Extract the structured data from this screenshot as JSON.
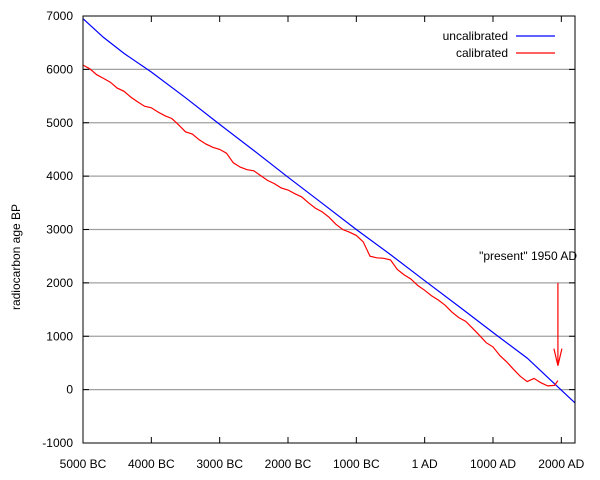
{
  "chart_data": {
    "type": "line",
    "title": "",
    "xlabel": "",
    "ylabel": "radiocarbon age BP",
    "xlim": [
      -5000,
      2200
    ],
    "ylim": [
      -1000,
      7000
    ],
    "grid": "horizontal",
    "legend_position": "top-right",
    "x_ticks": [
      {
        "value": -5000,
        "label": "5000 BC"
      },
      {
        "value": -4000,
        "label": "4000 BC"
      },
      {
        "value": -3000,
        "label": "3000 BC"
      },
      {
        "value": -2000,
        "label": "2000 BC"
      },
      {
        "value": -1000,
        "label": "1000 BC"
      },
      {
        "value": 0,
        "label": "1 AD"
      },
      {
        "value": 1000,
        "label": "1000 AD"
      },
      {
        "value": 2000,
        "label": "2000 AD"
      }
    ],
    "y_ticks": [
      {
        "value": -1000,
        "label": "-1000"
      },
      {
        "value": 0,
        "label": "0"
      },
      {
        "value": 1000,
        "label": "1000"
      },
      {
        "value": 2000,
        "label": "2000"
      },
      {
        "value": 3000,
        "label": "3000"
      },
      {
        "value": 4000,
        "label": "4000"
      },
      {
        "value": 5000,
        "label": "5000"
      },
      {
        "value": 6000,
        "label": "6000"
      },
      {
        "value": 7000,
        "label": "7000"
      }
    ],
    "series": [
      {
        "name": "uncalibrated",
        "color": "#0000ff",
        "x": [
          -5000,
          -4700,
          -4400,
          -4000,
          -3500,
          -3000,
          -2500,
          -2000,
          -1500,
          -1000,
          -500,
          0,
          500,
          1000,
          1500,
          2200
        ],
        "y": [
          6950,
          6600,
          6300,
          5950,
          5470,
          4970,
          4480,
          3980,
          3490,
          3000,
          2530,
          2040,
          1560,
          1070,
          590,
          -250
        ]
      },
      {
        "name": "calibrated",
        "color": "#ff0000",
        "x": [
          -5000,
          -4900,
          -4800,
          -4700,
          -4600,
          -4500,
          -4400,
          -4300,
          -4200,
          -4100,
          -4000,
          -3900,
          -3800,
          -3700,
          -3600,
          -3500,
          -3400,
          -3300,
          -3200,
          -3100,
          -3000,
          -2900,
          -2800,
          -2700,
          -2600,
          -2500,
          -2400,
          -2300,
          -2200,
          -2100,
          -2000,
          -1900,
          -1800,
          -1700,
          -1600,
          -1500,
          -1400,
          -1300,
          -1200,
          -1100,
          -1000,
          -900,
          -800,
          -700,
          -600,
          -500,
          -400,
          -300,
          -200,
          -100,
          0,
          100,
          200,
          300,
          400,
          500,
          600,
          700,
          800,
          900,
          1000,
          1100,
          1200,
          1300,
          1400,
          1500,
          1600,
          1700,
          1800,
          1900,
          1950
        ],
        "y": [
          6080,
          6010,
          5900,
          5830,
          5760,
          5650,
          5590,
          5480,
          5390,
          5310,
          5280,
          5200,
          5130,
          5080,
          4960,
          4830,
          4790,
          4680,
          4600,
          4540,
          4500,
          4430,
          4250,
          4170,
          4120,
          4100,
          4010,
          3920,
          3860,
          3780,
          3740,
          3670,
          3610,
          3500,
          3400,
          3330,
          3230,
          3100,
          3000,
          2950,
          2890,
          2770,
          2500,
          2470,
          2460,
          2430,
          2250,
          2150,
          2070,
          1950,
          1860,
          1760,
          1680,
          1580,
          1450,
          1350,
          1280,
          1150,
          1020,
          880,
          800,
          640,
          520,
          380,
          250,
          150,
          210,
          130,
          70,
          80,
          170
        ]
      }
    ],
    "annotation": {
      "text": "\"present\" 1950 AD",
      "x": 1950,
      "arrow_from_y": 2000,
      "arrow_to_y": 450
    }
  }
}
